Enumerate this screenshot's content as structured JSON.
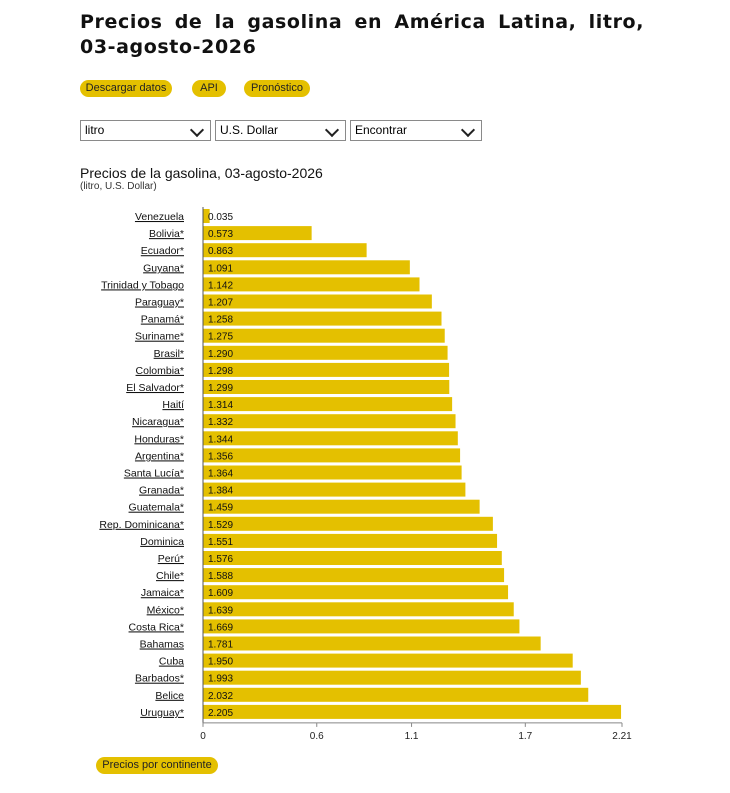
{
  "page": {
    "title": "Precios de la gasolina en América Latina, litro, 03-agosto-2026"
  },
  "buttons": {
    "download": "Descargar datos",
    "api": "API",
    "forecast": "Pronóstico",
    "by_continent": "Precios por continente"
  },
  "selects": {
    "unit": "litro",
    "currency": "U.S. Dollar",
    "find": "Encontrar"
  },
  "colors": {
    "accent": "#e4c000",
    "bar": "#e4c000"
  },
  "chart_data": {
    "type": "bar",
    "orientation": "horizontal",
    "title": "Precios de la gasolina, 03-agosto-2026",
    "subtitle": "(litro, U.S. Dollar)",
    "xlim": [
      0,
      2.21
    ],
    "xticks": [
      "0",
      "0.6",
      "1.1",
      "1.7",
      "2.21"
    ],
    "grid": false,
    "categories": [
      "Venezuela",
      "Bolivia*",
      "Ecuador*",
      "Guyana*",
      "Trinidad y Tobago",
      "Paraguay*",
      "Panamá*",
      "Suriname*",
      "Brasil*",
      "Colombia*",
      "El Salvador*",
      "Haití",
      "Nicaragua*",
      "Honduras*",
      "Argentina*",
      "Santa Lucía*",
      "Granada*",
      "Guatemala*",
      "Rep. Dominicana*",
      "Dominica",
      "Perú*",
      "Chile*",
      "Jamaica*",
      "México*",
      "Costa Rica*",
      "Bahamas",
      "Cuba",
      "Barbados*",
      "Belice",
      "Uruguay*"
    ],
    "values": [
      0.035,
      0.573,
      0.863,
      1.091,
      1.142,
      1.207,
      1.258,
      1.275,
      1.29,
      1.298,
      1.299,
      1.314,
      1.332,
      1.344,
      1.356,
      1.364,
      1.384,
      1.459,
      1.529,
      1.551,
      1.576,
      1.588,
      1.609,
      1.639,
      1.669,
      1.781,
      1.95,
      1.993,
      2.032,
      2.205
    ],
    "value_labels": [
      "0.035",
      "0.573",
      "0.863",
      "1.091",
      "1.142",
      "1.207",
      "1.258",
      "1.275",
      "1.290",
      "1.298",
      "1.299",
      "1.314",
      "1.332",
      "1.344",
      "1.356",
      "1.364",
      "1.384",
      "1.459",
      "1.529",
      "1.551",
      "1.576",
      "1.588",
      "1.609",
      "1.639",
      "1.669",
      "1.781",
      "1.950",
      "1.993",
      "2.032",
      "2.205"
    ]
  }
}
